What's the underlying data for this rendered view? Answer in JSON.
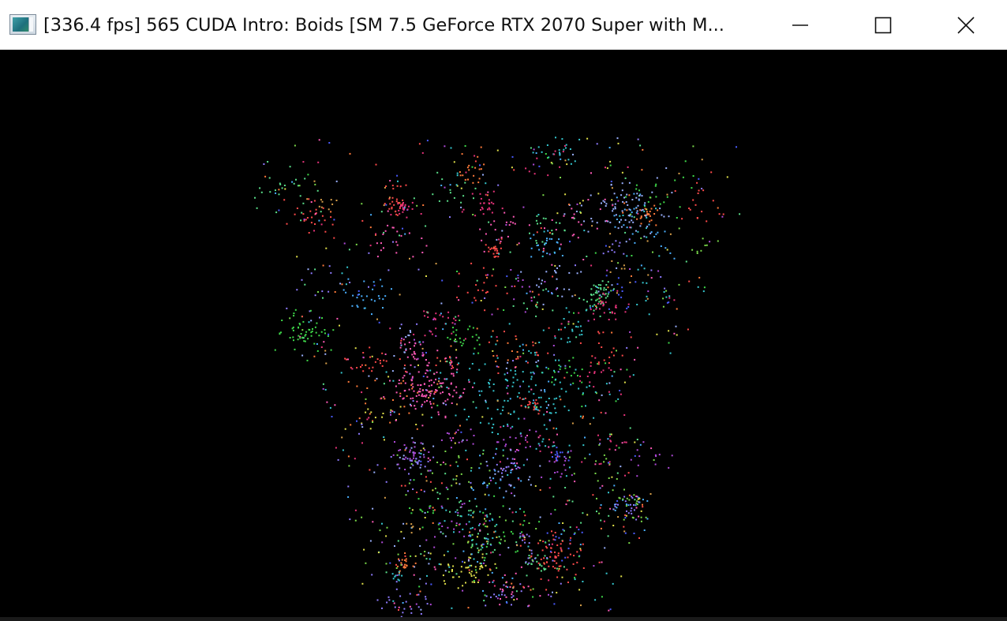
{
  "window": {
    "title": "[336.4 fps] 565 CUDA Intro: Boids [SM 7.5 GeForce RTX 2070 Super with M...",
    "icon": "app-window-icon",
    "controls": [
      {
        "name": "minimize-button",
        "icon": "minimize-icon"
      },
      {
        "name": "maximize-button",
        "icon": "maximize-icon"
      },
      {
        "name": "close-button",
        "icon": "close-icon"
      }
    ]
  },
  "colors": {
    "titlebar_bg": "#ffffff",
    "canvas_bg": "#000000",
    "title_text": "#111111"
  }
}
